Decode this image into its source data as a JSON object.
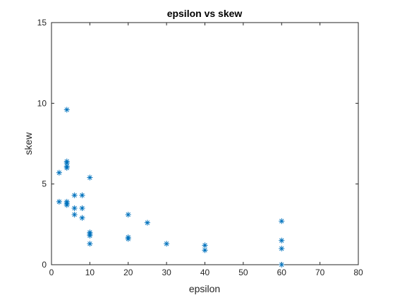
{
  "chart_data": {
    "type": "scatter",
    "title": "epsilon vs skew",
    "xlabel": "epsilon",
    "ylabel": "skew",
    "xlim": [
      0,
      80
    ],
    "ylim": [
      0,
      15
    ],
    "xticks": [
      0,
      10,
      20,
      30,
      40,
      50,
      60,
      70,
      80
    ],
    "yticks": [
      0,
      5,
      10,
      15
    ],
    "grid": false,
    "legend": "none",
    "marker": "asterisk",
    "color": "#0072BD",
    "series": [
      {
        "points": [
          {
            "x": 2,
            "y": 5.7
          },
          {
            "x": 2,
            "y": 3.9
          },
          {
            "x": 4,
            "y": 9.6
          },
          {
            "x": 4,
            "y": 6.4
          },
          {
            "x": 4,
            "y": 6.3
          },
          {
            "x": 4,
            "y": 6.1
          },
          {
            "x": 4,
            "y": 6.0
          },
          {
            "x": 4,
            "y": 3.9
          },
          {
            "x": 4,
            "y": 3.8
          },
          {
            "x": 4,
            "y": 3.7
          },
          {
            "x": 6,
            "y": 4.3
          },
          {
            "x": 6,
            "y": 3.5
          },
          {
            "x": 6,
            "y": 3.1
          },
          {
            "x": 8,
            "y": 4.3
          },
          {
            "x": 8,
            "y": 3.5
          },
          {
            "x": 8,
            "y": 2.9
          },
          {
            "x": 10,
            "y": 5.4
          },
          {
            "x": 10,
            "y": 2.0
          },
          {
            "x": 10,
            "y": 1.9
          },
          {
            "x": 10,
            "y": 1.8
          },
          {
            "x": 10,
            "y": 1.3
          },
          {
            "x": 20,
            "y": 3.1
          },
          {
            "x": 20,
            "y": 1.7
          },
          {
            "x": 20,
            "y": 1.6
          },
          {
            "x": 25,
            "y": 2.6
          },
          {
            "x": 30,
            "y": 1.3
          },
          {
            "x": 40,
            "y": 1.2
          },
          {
            "x": 40,
            "y": 0.9
          },
          {
            "x": 60,
            "y": 2.7
          },
          {
            "x": 60,
            "y": 1.5
          },
          {
            "x": 60,
            "y": 1.0
          },
          {
            "x": 60,
            "y": 0.0
          }
        ]
      }
    ]
  }
}
